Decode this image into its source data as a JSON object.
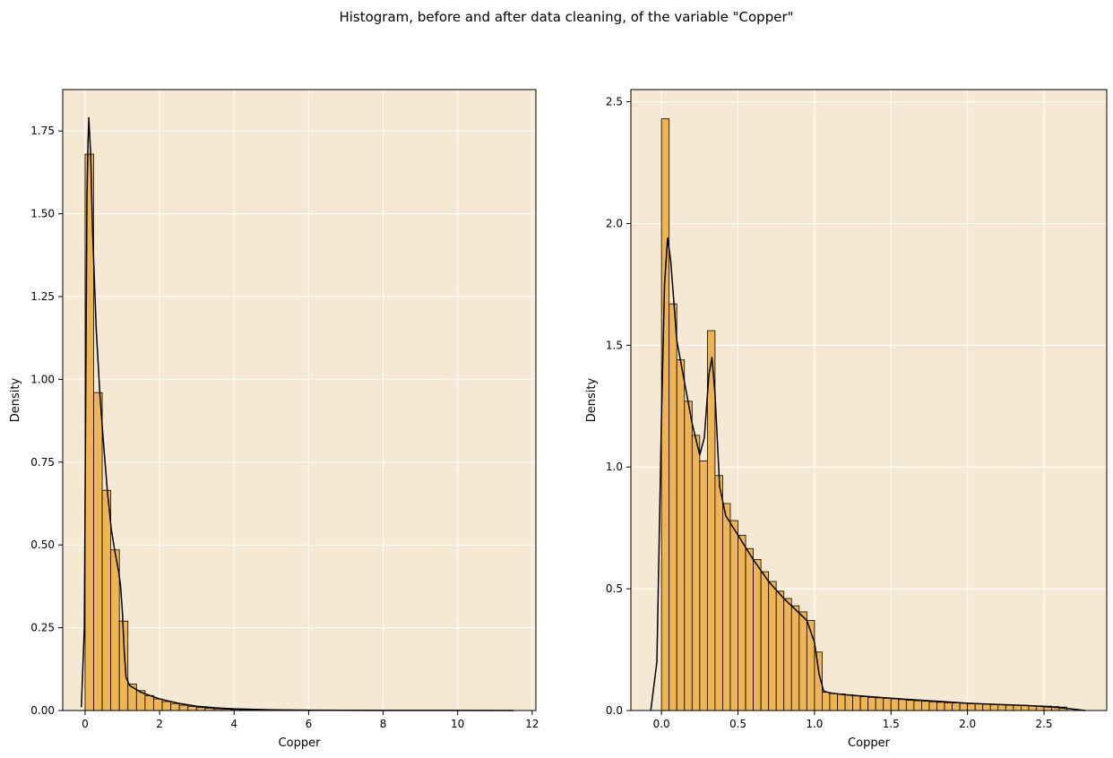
{
  "figure": {
    "suptitle": "Histogram, before and after data cleaning, of the variable \"Copper\""
  },
  "colors": {
    "axes_bg": "#f5e9d3",
    "bar_fill": "#eeb552",
    "bar_edge": "#000000",
    "kde_line": "#000000",
    "grid": "#ffffff"
  },
  "chart_data": [
    {
      "type": "bar",
      "title": "",
      "xlabel": "Copper",
      "ylabel": "Density",
      "xlim": [
        -0.6,
        12.1
      ],
      "ylim": [
        0,
        1.875
      ],
      "xticks": [
        0,
        2,
        4,
        6,
        8,
        10,
        12
      ],
      "xtick_labels": [
        "0",
        "2",
        "4",
        "6",
        "8",
        "10",
        "12"
      ],
      "yticks": [
        0,
        0.25,
        0.5,
        0.75,
        1.0,
        1.25,
        1.5,
        1.75
      ],
      "ytick_labels": [
        "0.00",
        "0.25",
        "0.50",
        "0.75",
        "1.00",
        "1.25",
        "1.50",
        "1.75"
      ],
      "grid": true,
      "bin_edges": [
        0,
        0.23,
        0.46,
        0.69,
        0.92,
        1.15,
        1.38,
        1.61,
        1.84,
        2.07,
        2.3,
        2.53,
        2.76,
        2.99,
        3.22,
        3.45,
        3.68,
        3.91,
        4.14,
        4.37,
        4.6,
        4.83,
        5.06,
        5.29,
        5.52,
        5.75,
        5.98,
        6.21,
        6.44,
        6.67,
        6.9,
        7.13,
        7.36,
        7.59,
        7.82,
        8.05,
        8.28,
        8.51,
        8.74,
        8.97,
        9.2,
        9.43,
        9.66,
        9.89,
        10.12,
        10.35,
        10.58,
        10.81,
        11.04,
        11.27,
        11.5
      ],
      "density": [
        1.68,
        0.96,
        0.665,
        0.485,
        0.27,
        0.08,
        0.06,
        0.045,
        0.035,
        0.027,
        0.021,
        0.016,
        0.012,
        0.009,
        0.007,
        0.005,
        0.004,
        0.003,
        0.0025,
        0.002,
        0.0018,
        0.0015,
        0.0013,
        0.0011,
        0.001,
        0.0009,
        0.0008,
        0.0007,
        0.0006,
        0.0005,
        0.0005,
        0.0004,
        0.0004,
        0.0003,
        0.0003,
        0.0003,
        0.0002,
        0.0002,
        0.0002,
        0.0002,
        0.0001,
        0.0001,
        0.0001,
        0.0001,
        0.0001,
        0.0001,
        0.0001,
        0.0001,
        0.0001,
        0.0001
      ],
      "kde": {
        "x": [
          -0.1,
          -0.02,
          0.02,
          0.05,
          0.08,
          0.1,
          0.15,
          0.2,
          0.3,
          0.4,
          0.5,
          0.6,
          0.7,
          0.8,
          0.9,
          0.95,
          1.0,
          1.05,
          1.1,
          1.2,
          1.5,
          2.0,
          2.5,
          3.0,
          3.5,
          4.0,
          5.0,
          6.0,
          8.0,
          10.0,
          11.5
        ],
        "y": [
          0.01,
          0.25,
          1.0,
          1.55,
          1.72,
          1.79,
          1.68,
          1.45,
          1.15,
          0.95,
          0.8,
          0.66,
          0.55,
          0.48,
          0.42,
          0.38,
          0.3,
          0.18,
          0.1,
          0.075,
          0.055,
          0.035,
          0.022,
          0.013,
          0.008,
          0.005,
          0.002,
          0.001,
          0.0005,
          0.0002,
          0.0001
        ]
      }
    },
    {
      "type": "bar",
      "title": "",
      "xlabel": "Copper",
      "ylabel": "Density",
      "xlim": [
        -0.2,
        2.91
      ],
      "ylim": [
        0,
        2.55
      ],
      "xticks": [
        0,
        0.5,
        1.0,
        1.5,
        2.0,
        2.5
      ],
      "xtick_labels": [
        "0.0",
        "0.5",
        "1.0",
        "1.5",
        "2.0",
        "2.5"
      ],
      "yticks": [
        0,
        0.5,
        1.0,
        1.5,
        2.0,
        2.5
      ],
      "ytick_labels": [
        "0.0",
        "0.5",
        "1.0",
        "1.5",
        "2.0",
        "2.5"
      ],
      "grid": true,
      "bin_edges": [
        0,
        0.05,
        0.1,
        0.15,
        0.2,
        0.25,
        0.3,
        0.35,
        0.4,
        0.45,
        0.5,
        0.55,
        0.6,
        0.65,
        0.7,
        0.75,
        0.8,
        0.85,
        0.9,
        0.95,
        1.0,
        1.05,
        1.1,
        1.15,
        1.2,
        1.25,
        1.3,
        1.35,
        1.4,
        1.45,
        1.5,
        1.55,
        1.6,
        1.65,
        1.7,
        1.75,
        1.8,
        1.85,
        1.9,
        1.95,
        2.0,
        2.05,
        2.1,
        2.15,
        2.2,
        2.25,
        2.3,
        2.35,
        2.4,
        2.45,
        2.5,
        2.55,
        2.6,
        2.65
      ],
      "density": [
        2.43,
        1.67,
        1.44,
        1.27,
        1.13,
        1.025,
        1.56,
        0.965,
        0.85,
        0.78,
        0.72,
        0.665,
        0.62,
        0.57,
        0.53,
        0.49,
        0.46,
        0.43,
        0.405,
        0.37,
        0.24,
        0.075,
        0.07,
        0.068,
        0.065,
        0.06,
        0.057,
        0.054,
        0.052,
        0.05,
        0.048,
        0.045,
        0.042,
        0.04,
        0.038,
        0.036,
        0.034,
        0.032,
        0.031,
        0.03,
        0.028,
        0.027,
        0.026,
        0.025,
        0.024,
        0.023,
        0.022,
        0.021,
        0.02,
        0.019,
        0.018,
        0.016,
        0.014
      ],
      "kde": {
        "x": [
          -0.07,
          -0.03,
          0.0,
          0.02,
          0.04,
          0.06,
          0.1,
          0.15,
          0.2,
          0.25,
          0.28,
          0.31,
          0.33,
          0.35,
          0.38,
          0.42,
          0.5,
          0.6,
          0.7,
          0.8,
          0.9,
          0.95,
          1.0,
          1.03,
          1.06,
          1.1,
          1.2,
          1.4,
          1.6,
          1.8,
          2.0,
          2.2,
          2.4,
          2.6,
          2.7,
          2.77
        ],
        "y": [
          0.0,
          0.2,
          1.2,
          1.75,
          1.94,
          1.85,
          1.52,
          1.35,
          1.18,
          1.05,
          1.12,
          1.38,
          1.45,
          1.3,
          0.92,
          0.8,
          0.72,
          0.62,
          0.53,
          0.46,
          0.4,
          0.37,
          0.28,
          0.15,
          0.08,
          0.072,
          0.065,
          0.055,
          0.046,
          0.038,
          0.03,
          0.025,
          0.02,
          0.012,
          0.005,
          0.0
        ]
      }
    }
  ]
}
